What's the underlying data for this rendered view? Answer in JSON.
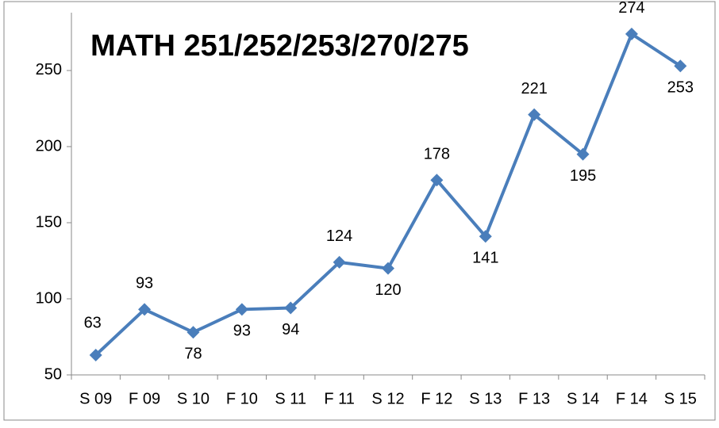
{
  "chart_data": {
    "type": "line",
    "title": "MATH 251/252/253/270/275",
    "categories": [
      "S 09",
      "F 09",
      "S 10",
      "F 10",
      "S 11",
      "F 11",
      "S 12",
      "F 12",
      "S 13",
      "F 13",
      "S 14",
      "F 14",
      "S 15"
    ],
    "series": [
      {
        "name": "MATH 251/252/253/270/275",
        "color": "#4a7ebb",
        "values": [
          63,
          93,
          78,
          93,
          94,
          124,
          120,
          178,
          141,
          221,
          195,
          274,
          253
        ]
      }
    ],
    "ylim": [
      50,
      288
    ],
    "yticks": [
      50,
      100,
      150,
      200,
      250
    ]
  }
}
